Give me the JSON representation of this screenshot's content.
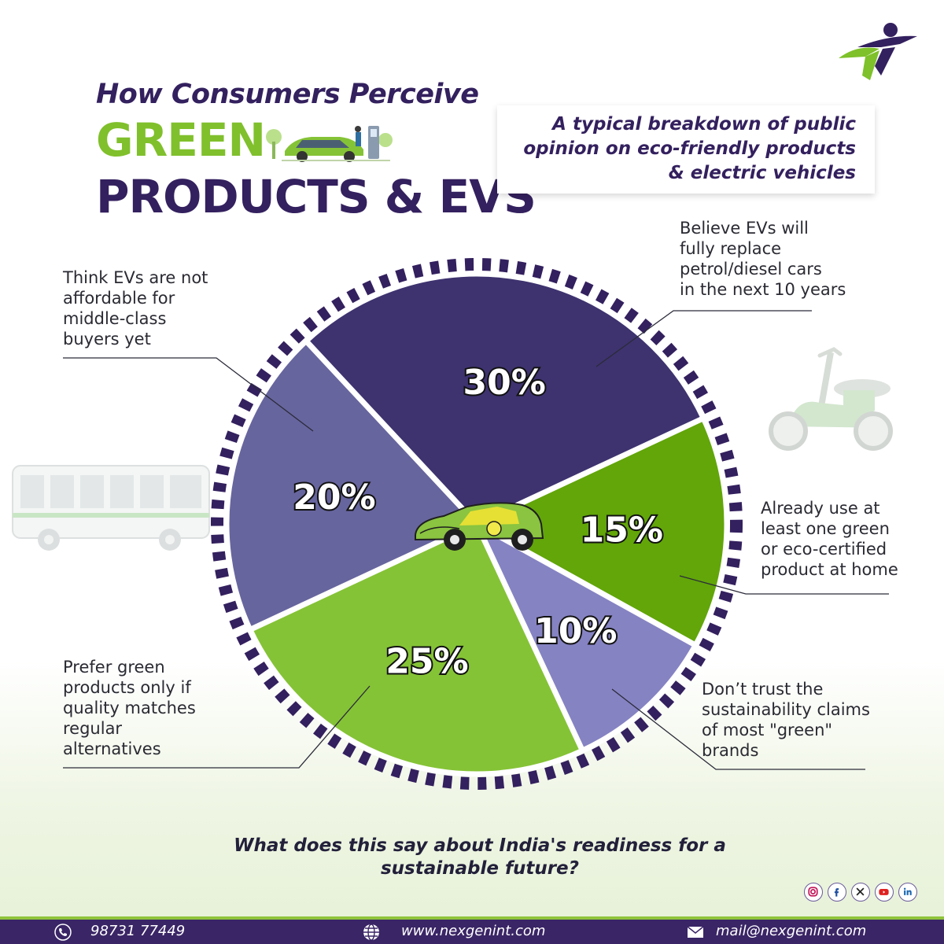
{
  "header": {
    "title_line1": "How Consumers Perceive",
    "title_line2": "GREEN",
    "title_line3": "PRODUCTS & EVS",
    "subtitle_lines": [
      "A typical breakdown of public",
      "opinion on eco-friendly products",
      "& electric vehicles"
    ]
  },
  "chart_data": {
    "type": "pie",
    "segments": [
      {
        "label_lines": [
          "Believe EVs will",
          "fully replace",
          "petrol/diesel cars",
          "in the next 10 years"
        ],
        "value": 30,
        "value_label": "30%",
        "color": "#3e336f"
      },
      {
        "label_lines": [
          "Already use at",
          "least one green",
          "or eco-certified",
          "product at home"
        ],
        "value": 15,
        "value_label": "15%",
        "color": "#62a609"
      },
      {
        "label_lines": [
          "Don’t trust the",
          "sustainability claims",
          "of most \"green\"",
          "brands"
        ],
        "value": 10,
        "value_label": "10%",
        "color": "#8683c3"
      },
      {
        "label_lines": [
          "Prefer green",
          "products only if",
          "quality matches",
          "regular",
          "alternatives"
        ],
        "value": 25,
        "value_label": "25%",
        "color": "#85c336"
      },
      {
        "label_lines": [
          "Think EVs are not",
          "affordable for",
          "middle-class",
          "buyers yet"
        ],
        "value": 20,
        "value_label": "20%",
        "color": "#67659e"
      }
    ],
    "ring_color": "#33205e"
  },
  "question_lines": [
    "What does this say about India's readiness for a",
    "sustainable future?"
  ],
  "footer": {
    "phone": "98731 77449",
    "website": "www.nexgenint.com",
    "email": "mail@nexgenint.com"
  },
  "social_icons": [
    "instagram-icon",
    "facebook-icon",
    "x-icon",
    "youtube-icon",
    "linkedin-icon"
  ],
  "colors": {
    "brand_purple": "#33205e",
    "brand_green": "#80c02c"
  }
}
